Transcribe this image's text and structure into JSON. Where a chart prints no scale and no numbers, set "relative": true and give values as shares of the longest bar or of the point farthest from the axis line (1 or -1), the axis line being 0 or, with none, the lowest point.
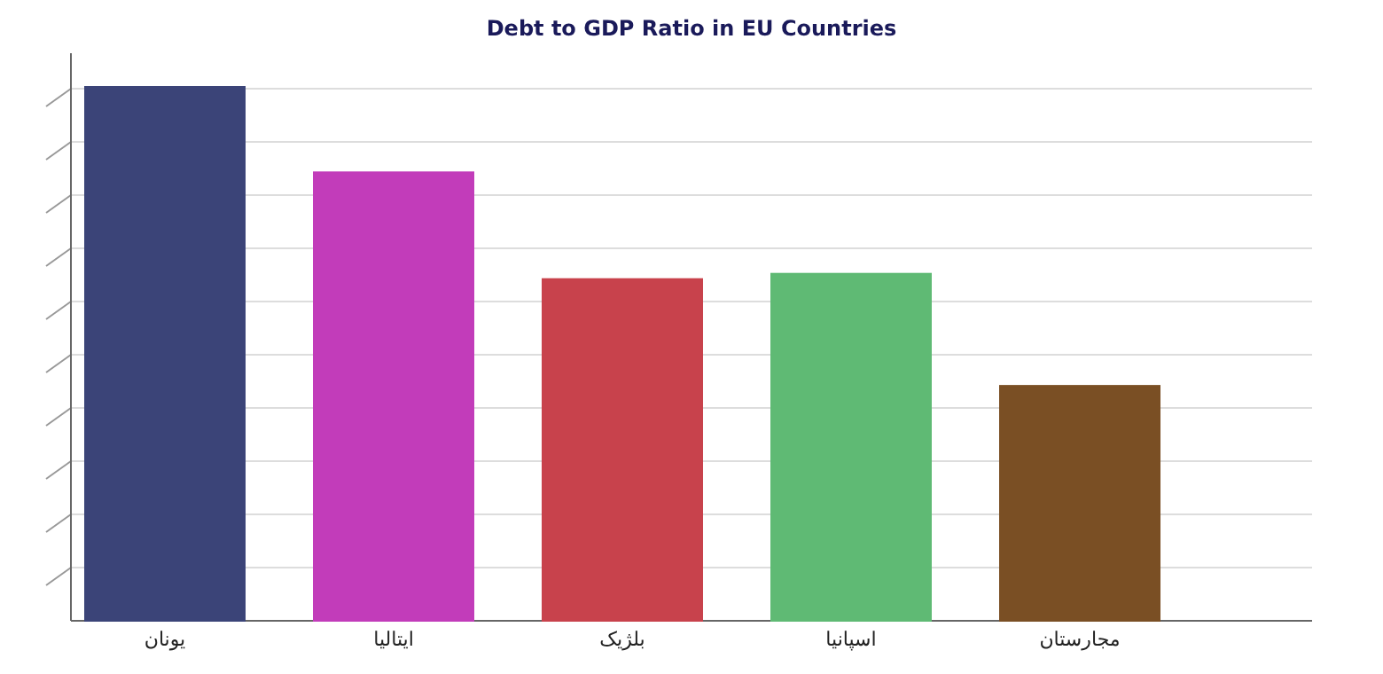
{
  "chart_data": {
    "type": "bar",
    "title": "Debt to GDP Ratio in EU Countries",
    "categories": [
      "یونان",
      "ایتالیا",
      "بلژیک",
      "اسپانیا",
      "مجارستان"
    ],
    "values": [
      1,
      0.84,
      0.64,
      0.65,
      0.44
    ],
    "colors": [
      "#3b4478",
      "#c23cba",
      "#c8424c",
      "#5fba74",
      "#7a4f24"
    ],
    "relative": true,
    "grid": "y"
  }
}
